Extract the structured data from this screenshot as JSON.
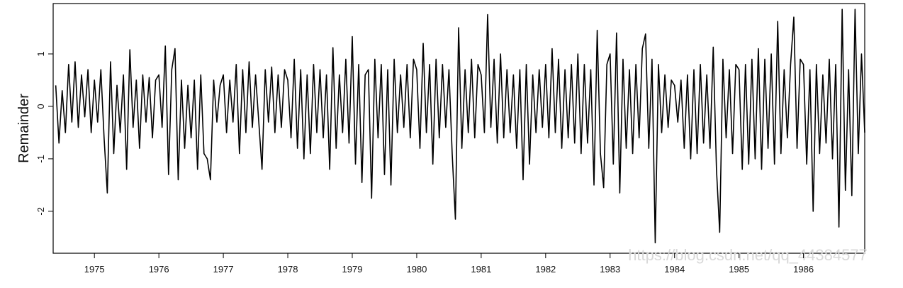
{
  "chart_data": {
    "type": "line",
    "y_label": "Remainder",
    "annotation": "https://blog.csdn.net/qq_44384577",
    "xlim": [
      1974.36,
      1986.95
    ],
    "xticks": [
      1975,
      1976,
      1977,
      1978,
      1979,
      1980,
      1981,
      1982,
      1983,
      1984,
      1985,
      1986
    ],
    "ylim": [
      -2.8,
      1.96
    ],
    "yticks": [
      -2,
      -1,
      0,
      1
    ],
    "grid": false,
    "series": [
      {
        "color": "#000000",
        "x": [
          1974.4,
          1974.45,
          1974.5,
          1974.55,
          1974.6,
          1974.65,
          1974.7,
          1974.75,
          1974.8,
          1974.85,
          1974.9,
          1974.95,
          1975,
          1975.05,
          1975.1,
          1975.15,
          1975.2,
          1975.25,
          1975.3,
          1975.35,
          1975.4,
          1975.45,
          1975.5,
          1975.55,
          1975.6,
          1975.65,
          1975.7,
          1975.75,
          1975.8,
          1975.85,
          1975.9,
          1975.95,
          1976,
          1976.05,
          1976.1,
          1976.15,
          1976.2,
          1976.25,
          1976.3,
          1976.35,
          1976.4,
          1976.45,
          1976.5,
          1976.55,
          1976.6,
          1976.65,
          1976.7,
          1976.75,
          1976.8,
          1976.85,
          1976.9,
          1976.95,
          1977,
          1977.05,
          1977.1,
          1977.15,
          1977.2,
          1977.25,
          1977.3,
          1977.35,
          1977.4,
          1977.45,
          1977.5,
          1977.55,
          1977.6,
          1977.65,
          1977.7,
          1977.75,
          1977.8,
          1977.85,
          1977.9,
          1977.95,
          1978,
          1978.05,
          1978.1,
          1978.15,
          1978.2,
          1978.25,
          1978.3,
          1978.35,
          1978.4,
          1978.45,
          1978.5,
          1978.55,
          1978.6,
          1978.65,
          1978.7,
          1978.75,
          1978.8,
          1978.85,
          1978.9,
          1978.95,
          1979,
          1979.05,
          1979.1,
          1979.15,
          1979.2,
          1979.25,
          1979.3,
          1979.35,
          1979.4,
          1979.45,
          1979.5,
          1979.55,
          1979.6,
          1979.65,
          1979.7,
          1979.75,
          1979.8,
          1979.85,
          1979.9,
          1979.95,
          1980,
          1980.05,
          1980.1,
          1980.15,
          1980.2,
          1980.25,
          1980.3,
          1980.35,
          1980.4,
          1980.45,
          1980.5,
          1980.55,
          1980.6,
          1980.65,
          1980.7,
          1980.75,
          1980.8,
          1980.85,
          1980.9,
          1980.95,
          1981,
          1981.05,
          1981.1,
          1981.15,
          1981.2,
          1981.25,
          1981.3,
          1981.35,
          1981.4,
          1981.45,
          1981.5,
          1981.55,
          1981.6,
          1981.65,
          1981.7,
          1981.75,
          1981.8,
          1981.85,
          1981.9,
          1981.95,
          1982,
          1982.05,
          1982.1,
          1982.15,
          1982.2,
          1982.25,
          1982.3,
          1982.35,
          1982.4,
          1982.45,
          1982.5,
          1982.55,
          1982.6,
          1982.65,
          1982.7,
          1982.75,
          1982.8,
          1982.85,
          1982.9,
          1982.95,
          1983,
          1983.05,
          1983.1,
          1983.15,
          1983.2,
          1983.25,
          1983.3,
          1983.35,
          1983.4,
          1983.45,
          1983.5,
          1983.55,
          1983.6,
          1983.65,
          1983.7,
          1983.75,
          1983.8,
          1983.85,
          1983.9,
          1983.95,
          1984,
          1984.05,
          1984.1,
          1984.15,
          1984.2,
          1984.25,
          1984.3,
          1984.35,
          1984.4,
          1984.45,
          1984.5,
          1984.55,
          1984.6,
          1984.65,
          1984.7,
          1984.75,
          1984.8,
          1984.85,
          1984.9,
          1984.95,
          1985,
          1985.05,
          1985.1,
          1985.15,
          1985.2,
          1985.25,
          1985.3,
          1985.35,
          1985.4,
          1985.45,
          1985.5,
          1985.55,
          1985.6,
          1985.65,
          1985.7,
          1985.75,
          1985.8,
          1985.85,
          1985.9,
          1985.95,
          1986,
          1986.05,
          1986.1,
          1986.15,
          1986.2,
          1986.25,
          1986.3,
          1986.35,
          1986.4,
          1986.45,
          1986.5,
          1986.55,
          1986.6,
          1986.65,
          1986.7,
          1986.75,
          1986.8,
          1986.85,
          1986.9,
          1986.95
        ],
        "values": [
          0.4,
          -0.7,
          0.3,
          -0.5,
          0.8,
          -0.3,
          0.85,
          -0.4,
          0.6,
          -0.2,
          0.7,
          -0.5,
          0.5,
          -0.3,
          0.7,
          -0.6,
          -1.65,
          0.85,
          -0.9,
          0.4,
          -0.5,
          0.6,
          -1.2,
          1.08,
          -0.4,
          0.5,
          -0.8,
          0.6,
          -0.3,
          0.55,
          -0.6,
          0.5,
          0.6,
          -0.4,
          1.15,
          -1.3,
          0.7,
          1.1,
          -1.4,
          0.5,
          -0.8,
          0.4,
          -0.6,
          0.5,
          -1.2,
          0.6,
          -0.9,
          -1.0,
          -1.4,
          0.5,
          -0.3,
          0.4,
          0.6,
          -0.5,
          0.5,
          -0.3,
          0.8,
          -0.9,
          0.7,
          -0.5,
          0.85,
          -0.4,
          0.6,
          -0.3,
          -1.2,
          0.7,
          -0.3,
          0.75,
          -0.5,
          0.6,
          -0.4,
          0.7,
          0.5,
          -0.6,
          0.9,
          -0.8,
          0.7,
          -1.0,
          0.6,
          -0.9,
          0.8,
          -0.5,
          0.7,
          -0.6,
          0.6,
          -1.2,
          1.12,
          -0.8,
          0.6,
          -0.5,
          0.9,
          -0.7,
          1.33,
          -1.1,
          0.8,
          -1.45,
          0.6,
          0.7,
          -1.75,
          0.9,
          -0.6,
          0.8,
          -1.3,
          0.7,
          -1.5,
          0.9,
          -0.5,
          0.6,
          -0.4,
          0.8,
          -0.6,
          0.9,
          0.7,
          -0.8,
          1.2,
          -0.5,
          0.8,
          -1.1,
          0.9,
          -0.6,
          0.8,
          -0.4,
          0.7,
          -0.9,
          -2.15,
          1.5,
          -0.8,
          0.7,
          -0.5,
          0.9,
          -0.6,
          0.8,
          0.6,
          -0.5,
          1.75,
          -0.4,
          0.9,
          -0.7,
          1.0,
          -0.6,
          0.7,
          -0.5,
          0.6,
          -0.8,
          0.7,
          -1.4,
          0.8,
          -1.1,
          0.6,
          -0.5,
          0.7,
          -0.4,
          0.8,
          -0.6,
          1.1,
          -0.5,
          0.9,
          -0.8,
          0.7,
          -0.6,
          0.8,
          -0.7,
          1.0,
          -0.9,
          0.8,
          -0.7,
          0.7,
          -1.5,
          1.45,
          -0.9,
          -1.55,
          0.8,
          1.0,
          -1.1,
          1.4,
          -1.65,
          0.9,
          -0.8,
          0.7,
          -0.9,
          0.8,
          -0.6,
          1.1,
          1.38,
          -0.8,
          0.9,
          -2.6,
          0.8,
          -0.5,
          0.6,
          -0.4,
          0.5,
          0.4,
          -0.3,
          0.5,
          -0.8,
          0.6,
          -1.0,
          0.7,
          -0.9,
          0.8,
          -0.7,
          0.6,
          -0.8,
          1.13,
          -1.2,
          -2.4,
          0.9,
          -0.6,
          0.7,
          -0.9,
          0.8,
          0.7,
          -1.2,
          0.8,
          -1.1,
          0.9,
          -1.0,
          1.1,
          -1.2,
          0.9,
          -0.8,
          1.0,
          -1.1,
          1.62,
          -0.9,
          0.7,
          -0.6,
          0.8,
          1.7,
          -0.8,
          0.9,
          0.8,
          -1.1,
          0.7,
          -2.0,
          0.8,
          -0.9,
          0.6,
          -0.7,
          0.9,
          -1.0,
          0.8,
          -2.3,
          1.85,
          -1.6,
          0.7,
          -1.7,
          1.85,
          -0.9,
          1.0,
          -0.5
        ]
      }
    ]
  }
}
